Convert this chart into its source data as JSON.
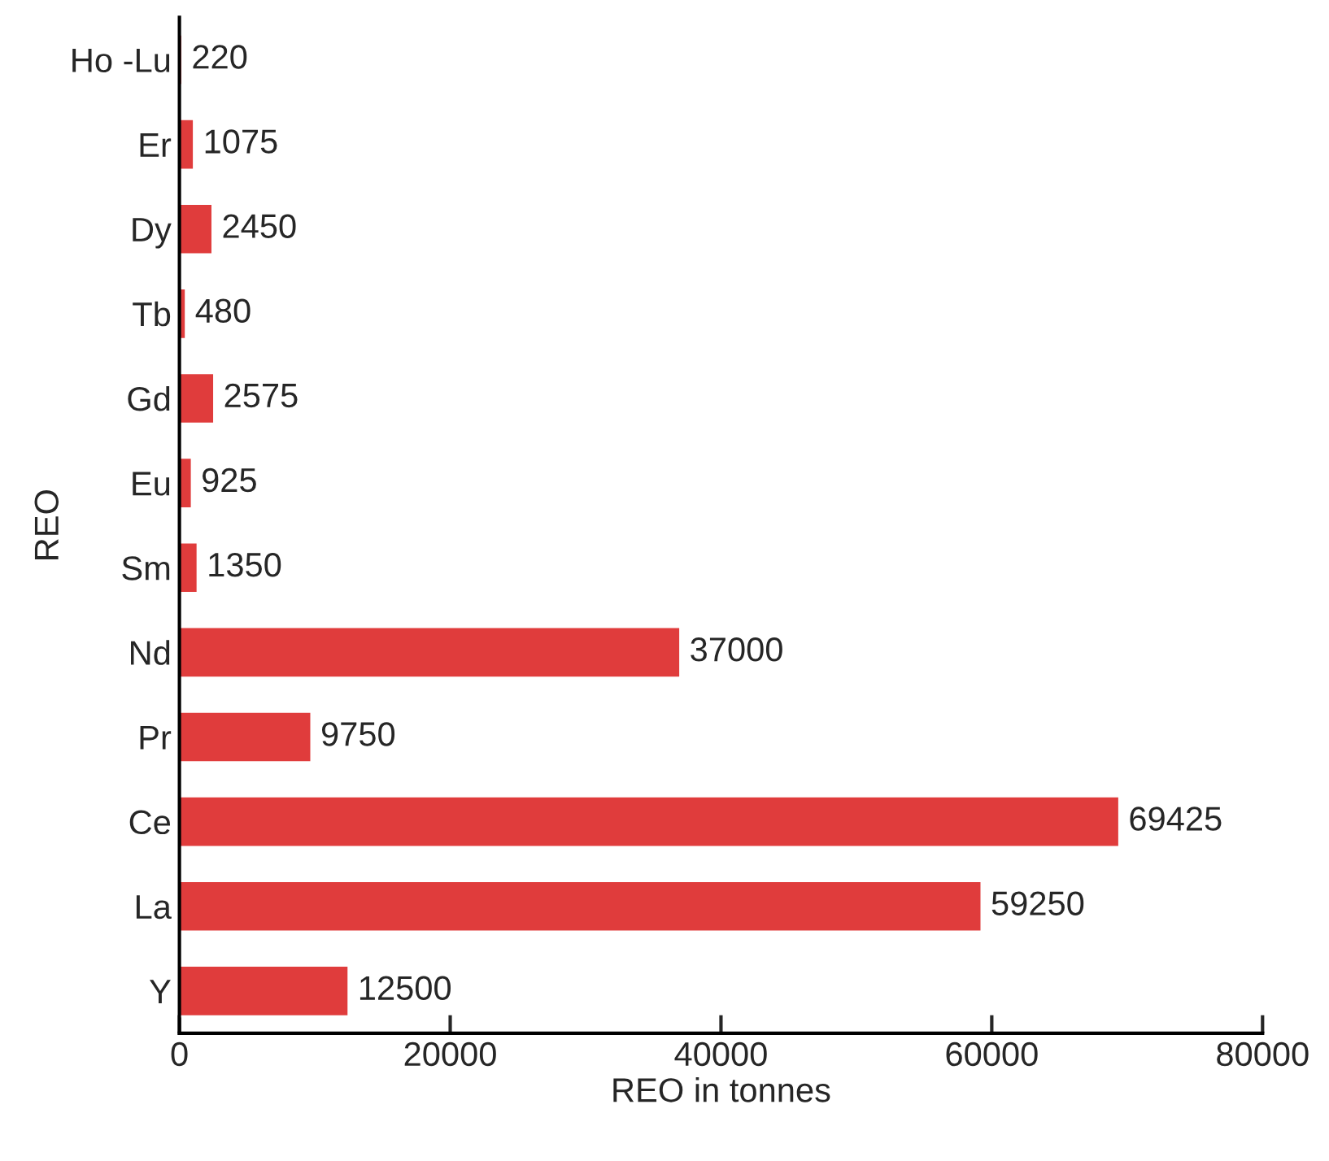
{
  "chart_data": {
    "type": "bar",
    "orientation": "horizontal",
    "xlabel": "REO in tonnes",
    "ylabel": "REO",
    "categories": [
      "Ho -Lu",
      "Er",
      "Dy",
      "Tb",
      "Gd",
      "Eu",
      "Sm",
      "Nd",
      "Pr",
      "Ce",
      "La",
      "Y"
    ],
    "values": [
      220,
      1075,
      2450,
      480,
      2575,
      925,
      1350,
      37000,
      9750,
      69425,
      59250,
      12500
    ],
    "color": "#e03c3c",
    "xlim": [
      0,
      80000
    ],
    "xticks": [
      0,
      20000,
      40000,
      60000,
      80000
    ],
    "grid": false,
    "data_labels": true
  }
}
